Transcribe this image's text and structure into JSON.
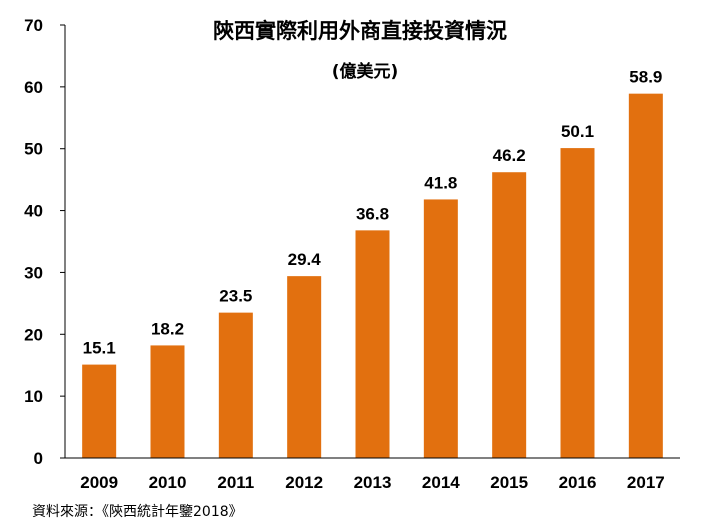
{
  "chart_data": {
    "type": "bar",
    "title": "陝西實際利用外商直接投資情況",
    "subtitle": "(億美元)",
    "categories": [
      "2009",
      "2010",
      "2011",
      "2012",
      "2013",
      "2014",
      "2015",
      "2016",
      "2017"
    ],
    "values": [
      15.1,
      18.2,
      23.5,
      29.4,
      36.8,
      41.8,
      46.2,
      50.1,
      58.9
    ],
    "value_labels": [
      "15.1",
      "18.2",
      "23.5",
      "29.4",
      "36.8",
      "41.8",
      "46.2",
      "50.1",
      "58.9"
    ],
    "yticks": [
      "0",
      "10",
      "20",
      "30",
      "40",
      "50",
      "60",
      "70"
    ],
    "ylim": [
      0,
      70
    ],
    "xlabel": "",
    "ylabel": "",
    "grid": false,
    "legend": "none",
    "bar_color": "#E2700F"
  },
  "source": "資料來源：《陝西統計年鑒2018》"
}
